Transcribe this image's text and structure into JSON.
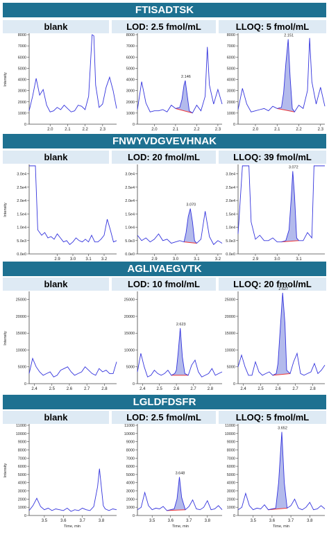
{
  "peptides": [
    "FTISADTSK",
    "FNWYVDGVEVHNAK",
    "AGLIVAEGVTK",
    "LGLDFDSFR"
  ],
  "axis": {
    "ylabel": "Intensity",
    "xlabel": "Time, min"
  },
  "colors": {
    "banner": "#1e7191",
    "header": "#deeaf4",
    "trace": "#3333dd",
    "fill": "#9aa3e6",
    "baseline": "#ee3333"
  },
  "chart_data": [
    {
      "type": "line",
      "peptide": "FTISADTSK",
      "column": "blank",
      "xlim": [
        1.88,
        2.38
      ],
      "ylim": [
        0,
        8000
      ],
      "xticks": [
        "2.0",
        "2.1",
        "2.2",
        "2.3"
      ],
      "yticks": [
        "0",
        "1000",
        "2000",
        "3000",
        "4000",
        "5000",
        "6000",
        "7000",
        "8000"
      ],
      "peak_label": "",
      "x": [
        1.88,
        1.9,
        1.92,
        1.94,
        1.96,
        1.98,
        2.0,
        2.02,
        2.04,
        2.06,
        2.08,
        2.1,
        2.12,
        2.14,
        2.16,
        2.18,
        2.2,
        2.22,
        2.24,
        2.25,
        2.26,
        2.28,
        2.3,
        2.32,
        2.34,
        2.36,
        2.38
      ],
      "y": [
        1200,
        2500,
        4100,
        2600,
        3100,
        1700,
        1100,
        1200,
        1500,
        1300,
        1700,
        1400,
        1100,
        1200,
        1700,
        1600,
        1300,
        2500,
        8100,
        7900,
        3500,
        1500,
        1800,
        3300,
        4200,
        3000,
        1400
      ]
    },
    {
      "type": "line",
      "peptide": "FTISADTSK",
      "column": "LOD: 2.5 fmol/mL",
      "xlim": [
        1.92,
        2.32
      ],
      "ylim": [
        0,
        8000
      ],
      "xticks": [
        "2.0",
        "2.1",
        "2.2",
        "2.3"
      ],
      "yticks": [
        "0",
        "1000",
        "2000",
        "3000",
        "4000",
        "5000",
        "6000",
        "7000",
        "8000"
      ],
      "peak_label": "2.146",
      "x": [
        1.92,
        1.94,
        1.96,
        1.98,
        2.0,
        2.02,
        2.04,
        2.06,
        2.08,
        2.1,
        2.12,
        2.13,
        2.14,
        2.146,
        2.155,
        2.165,
        2.18,
        2.2,
        2.22,
        2.24,
        2.25,
        2.26,
        2.28,
        2.3,
        2.32
      ],
      "y": [
        1300,
        3800,
        1900,
        1100,
        1200,
        1200,
        1300,
        1100,
        1700,
        1400,
        1500,
        2200,
        3500,
        3900,
        2600,
        1200,
        1000,
        1700,
        1200,
        2500,
        6900,
        3500,
        1800,
        3100,
        1800
      ]
    },
    {
      "type": "line",
      "peptide": "FTISADTSK",
      "column": "LLOQ: 5 fmol/mL",
      "xlim": [
        1.92,
        2.32
      ],
      "ylim": [
        0,
        8000
      ],
      "xticks": [
        "2.0",
        "2.1",
        "2.2",
        "2.3"
      ],
      "yticks": [
        "0",
        "1000",
        "2000",
        "3000",
        "4000",
        "5000",
        "6000",
        "7000",
        "8000"
      ],
      "peak_label": "2.151",
      "x": [
        1.92,
        1.94,
        1.96,
        1.98,
        2.0,
        2.02,
        2.04,
        2.06,
        2.08,
        2.1,
        2.12,
        2.13,
        2.14,
        2.151,
        2.16,
        2.17,
        2.18,
        2.2,
        2.22,
        2.24,
        2.25,
        2.26,
        2.28,
        2.3,
        2.32
      ],
      "y": [
        1300,
        3200,
        1800,
        1100,
        1200,
        1300,
        1400,
        1200,
        1600,
        1400,
        1500,
        2800,
        5400,
        7600,
        4200,
        1400,
        1100,
        1700,
        1400,
        3000,
        7700,
        3800,
        1800,
        3300,
        1600
      ]
    },
    {
      "type": "line",
      "peptide": "FNWYVDGVEVHNAK",
      "column": "blank",
      "xlim": [
        2.72,
        3.28
      ],
      "ylim": [
        0,
        33000
      ],
      "xticks": [
        "2.9",
        "3.0",
        "3.1",
        "3.2"
      ],
      "yticks": [
        "0.0e0",
        "5.0e3",
        "1.0e4",
        "1.5e4",
        "2.0e4",
        "2.5e4",
        "3.0e4"
      ],
      "peak_label": "",
      "x": [
        2.72,
        2.74,
        2.76,
        2.775,
        2.8,
        2.82,
        2.84,
        2.86,
        2.88,
        2.9,
        2.92,
        2.94,
        2.96,
        2.98,
        3.0,
        3.02,
        3.04,
        3.06,
        3.08,
        3.1,
        3.12,
        3.14,
        3.16,
        3.18,
        3.2,
        3.22,
        3.24,
        3.26,
        3.28
      ],
      "y": [
        33000,
        33000,
        33000,
        9000,
        7000,
        8000,
        6000,
        6500,
        5500,
        7500,
        6000,
        4500,
        5000,
        3500,
        4500,
        6000,
        5000,
        4500,
        5500,
        4500,
        7000,
        4500,
        4500,
        5500,
        7000,
        13000,
        9000,
        4500,
        5000
      ]
    },
    {
      "type": "line",
      "peptide": "FNWYVDGVEVHNAK",
      "column": "LOD: 20 fmol/mL",
      "xlim": [
        2.82,
        3.22
      ],
      "ylim": [
        0,
        33000
      ],
      "xticks": [
        "2.9",
        "3.0",
        "3.1",
        "3.2"
      ],
      "yticks": [
        "0.0e0",
        "5.0e3",
        "1.0e4",
        "1.5e4",
        "2.0e4",
        "2.5e4",
        "3.0e4"
      ],
      "peak_label": "3.070",
      "x": [
        2.82,
        2.84,
        2.86,
        2.88,
        2.9,
        2.92,
        2.94,
        2.96,
        2.98,
        3.0,
        3.02,
        3.04,
        3.05,
        3.06,
        3.07,
        3.08,
        3.09,
        3.1,
        3.12,
        3.14,
        3.16,
        3.18,
        3.2,
        3.22
      ],
      "y": [
        7000,
        5000,
        6000,
        4500,
        5500,
        7500,
        5000,
        5500,
        4000,
        4500,
        5000,
        4500,
        8000,
        14000,
        17000,
        12000,
        5000,
        4000,
        5500,
        16000,
        6500,
        3500,
        5000,
        4000
      ]
    },
    {
      "type": "line",
      "peptide": "FNWYVDGVEVHNAK",
      "column": "LLOQ: 39 fmol/mL",
      "xlim": [
        2.82,
        3.22
      ],
      "ylim": [
        0,
        33000
      ],
      "xticks": [
        "2.9",
        "3.0",
        "3.1"
      ],
      "yticks": [
        "0.0e0",
        "5.0e3",
        "1.0e4",
        "1.5e4",
        "2.0e4",
        "2.5e4",
        "3.0e4"
      ],
      "peak_label": "3.072",
      "x": [
        2.82,
        2.84,
        2.855,
        2.87,
        2.88,
        2.9,
        2.92,
        2.94,
        2.96,
        2.98,
        3.0,
        3.02,
        3.04,
        3.055,
        3.065,
        3.072,
        3.08,
        3.09,
        3.1,
        3.12,
        3.14,
        3.16,
        3.17,
        3.19,
        3.2,
        3.22
      ],
      "y": [
        7500,
        33000,
        33000,
        33000,
        12000,
        5500,
        7000,
        5000,
        5000,
        6000,
        4500,
        4500,
        5000,
        9000,
        21000,
        31000,
        22000,
        6000,
        5000,
        5000,
        8000,
        6000,
        33000,
        33000,
        33000,
        33000
      ]
    },
    {
      "type": "line",
      "peptide": "AGLIVAEGVTK",
      "column": "blank",
      "xlim": [
        2.37,
        2.87
      ],
      "ylim": [
        0,
        27000
      ],
      "xticks": [
        "2.4",
        "2.5",
        "2.6",
        "2.7",
        "2.8"
      ],
      "yticks": [
        "0",
        "5000",
        "10000",
        "15000",
        "20000",
        "25000"
      ],
      "peak_label": "",
      "x": [
        2.37,
        2.39,
        2.41,
        2.43,
        2.45,
        2.47,
        2.49,
        2.51,
        2.53,
        2.55,
        2.57,
        2.59,
        2.61,
        2.63,
        2.65,
        2.67,
        2.69,
        2.71,
        2.73,
        2.75,
        2.77,
        2.79,
        2.81,
        2.83,
        2.85,
        2.87
      ],
      "y": [
        3000,
        7500,
        5000,
        3500,
        2500,
        3000,
        3500,
        2000,
        2500,
        4000,
        4500,
        5000,
        3500,
        2500,
        3000,
        3500,
        5000,
        4000,
        3000,
        2500,
        4500,
        3500,
        4000,
        3000,
        3000,
        6500
      ]
    },
    {
      "type": "line",
      "peptide": "AGLIVAEGVTK",
      "column": "LOD: 10 fmol/mL",
      "xlim": [
        2.37,
        2.87
      ],
      "ylim": [
        0,
        27000
      ],
      "xticks": [
        "2.4",
        "2.5",
        "2.6",
        "2.7",
        "2.8"
      ],
      "yticks": [
        "0",
        "5000",
        "10000",
        "15000",
        "20000",
        "25000"
      ],
      "peak_label": "2.623",
      "x": [
        2.37,
        2.39,
        2.41,
        2.43,
        2.45,
        2.47,
        2.49,
        2.51,
        2.53,
        2.55,
        2.57,
        2.59,
        2.6,
        2.61,
        2.623,
        2.635,
        2.65,
        2.67,
        2.69,
        2.71,
        2.73,
        2.75,
        2.77,
        2.79,
        2.81,
        2.83,
        2.85,
        2.87
      ],
      "y": [
        3500,
        9000,
        5000,
        2000,
        2500,
        4000,
        3000,
        2500,
        3000,
        4000,
        2500,
        3000,
        4000,
        9000,
        16500,
        8000,
        3000,
        2500,
        5500,
        7000,
        3500,
        2000,
        2500,
        3000,
        4500,
        2500,
        3000,
        3500
      ]
    },
    {
      "type": "line",
      "peptide": "AGLIVAEGVTK",
      "column": "LLOQ: 20 fmol/mL",
      "xlim": [
        2.37,
        2.87
      ],
      "ylim": [
        0,
        27000
      ],
      "xticks": [
        "2.4",
        "2.5",
        "2.6",
        "2.7",
        "2.8"
      ],
      "yticks": [
        "0",
        "5000",
        "10000",
        "15000",
        "20000",
        "25000"
      ],
      "peak_label": "2.627",
      "x": [
        2.37,
        2.39,
        2.41,
        2.43,
        2.45,
        2.47,
        2.49,
        2.51,
        2.53,
        2.55,
        2.57,
        2.59,
        2.6,
        2.61,
        2.627,
        2.64,
        2.65,
        2.67,
        2.69,
        2.71,
        2.73,
        2.75,
        2.77,
        2.79,
        2.81,
        2.83,
        2.85,
        2.87
      ],
      "y": [
        5000,
        8500,
        5000,
        2500,
        2500,
        6500,
        3500,
        2500,
        3000,
        3500,
        2500,
        3000,
        6000,
        14000,
        27500,
        18000,
        4000,
        3000,
        6500,
        9000,
        3000,
        2500,
        3000,
        3500,
        6000,
        3000,
        4000,
        5500
      ]
    },
    {
      "type": "line",
      "peptide": "LGLDFDSFR",
      "column": "blank",
      "xlim": [
        3.42,
        3.88
      ],
      "ylim": [
        0,
        11000
      ],
      "xticks": [
        "3.5",
        "3.6",
        "3.7",
        "3.8"
      ],
      "yticks": [
        "0",
        "1000",
        "2000",
        "3000",
        "4000",
        "5000",
        "6000",
        "7000",
        "8000",
        "9000",
        "10000",
        "11000"
      ],
      "peak_label": "",
      "x": [
        3.42,
        3.44,
        3.46,
        3.48,
        3.5,
        3.52,
        3.54,
        3.56,
        3.58,
        3.6,
        3.62,
        3.64,
        3.66,
        3.68,
        3.7,
        3.72,
        3.74,
        3.76,
        3.78,
        3.79,
        3.8,
        3.81,
        3.82,
        3.84,
        3.86,
        3.88
      ],
      "y": [
        600,
        1200,
        2100,
        1100,
        700,
        900,
        600,
        800,
        700,
        600,
        900,
        500,
        700,
        600,
        900,
        700,
        600,
        1100,
        3500,
        5700,
        3400,
        1200,
        800,
        600,
        800,
        700
      ]
    },
    {
      "type": "line",
      "peptide": "LGLDFDSFR",
      "column": "LOD: 2.5 fmol/mL",
      "xlim": [
        3.42,
        3.88
      ],
      "ylim": [
        0,
        11000
      ],
      "xticks": [
        "3.5",
        "3.6",
        "3.7",
        "3.8"
      ],
      "yticks": [
        "0",
        "1000",
        "2000",
        "3000",
        "4000",
        "5000",
        "6000",
        "7000",
        "8000",
        "9000",
        "10000",
        "11000"
      ],
      "peak_label": "3.648",
      "x": [
        3.42,
        3.44,
        3.46,
        3.48,
        3.5,
        3.52,
        3.54,
        3.56,
        3.58,
        3.6,
        3.62,
        3.635,
        3.648,
        3.66,
        3.68,
        3.7,
        3.72,
        3.74,
        3.76,
        3.78,
        3.8,
        3.82,
        3.84,
        3.86,
        3.88
      ],
      "y": [
        700,
        1000,
        2800,
        1200,
        700,
        900,
        800,
        1100,
        600,
        700,
        800,
        2000,
        4700,
        2200,
        700,
        1100,
        1900,
        800,
        700,
        1000,
        1800,
        700,
        800,
        1200,
        700
      ]
    },
    {
      "type": "line",
      "peptide": "LGLDFDSFR",
      "column": "LLOQ: 5 fmol/mL",
      "xlim": [
        3.42,
        3.88
      ],
      "ylim": [
        0,
        11000
      ],
      "xticks": [
        "3.5",
        "3.6",
        "3.7",
        "3.8"
      ],
      "yticks": [
        "0",
        "1000",
        "2000",
        "3000",
        "4000",
        "5000",
        "6000",
        "7000",
        "8000",
        "9000",
        "10000",
        "11000"
      ],
      "peak_label": "3.652",
      "x": [
        3.42,
        3.44,
        3.46,
        3.48,
        3.5,
        3.52,
        3.54,
        3.56,
        3.58,
        3.6,
        3.62,
        3.635,
        3.652,
        3.665,
        3.68,
        3.7,
        3.72,
        3.74,
        3.76,
        3.78,
        3.8,
        3.82,
        3.84,
        3.86,
        3.88
      ],
      "y": [
        700,
        1000,
        2700,
        1200,
        700,
        900,
        800,
        1300,
        700,
        800,
        900,
        4000,
        10200,
        4000,
        900,
        1200,
        2000,
        900,
        700,
        1000,
        1600,
        700,
        800,
        1200,
        800
      ]
    }
  ]
}
